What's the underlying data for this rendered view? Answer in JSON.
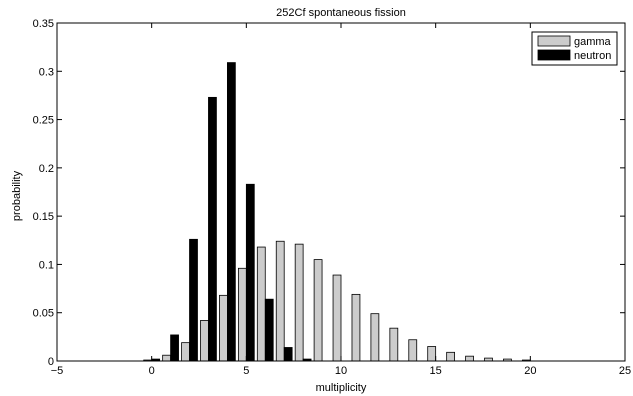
{
  "chart_data": {
    "type": "bar",
    "title": "252Cf spontaneous fission",
    "xlabel": "multiplicity",
    "ylabel": "probability",
    "xlim": [
      -5,
      25
    ],
    "ylim": [
      0,
      0.35
    ],
    "xticks": [
      "−5",
      "0",
      "5",
      "10",
      "15",
      "20",
      "25"
    ],
    "yticks": [
      "0",
      "0.05",
      "0.1",
      "0.15",
      "0.2",
      "0.25",
      "0.3",
      "0.35"
    ],
    "grid": false,
    "legend_position": "top-right",
    "series": [
      {
        "name": "gamma",
        "color": "#cccccc",
        "x": [
          0,
          1,
          2,
          3,
          4,
          5,
          6,
          7,
          8,
          9,
          10,
          11,
          12,
          13,
          14,
          15,
          16,
          17,
          18,
          19,
          20
        ],
        "values": [
          0.001,
          0.006,
          0.019,
          0.042,
          0.068,
          0.096,
          0.118,
          0.124,
          0.121,
          0.105,
          0.089,
          0.069,
          0.049,
          0.034,
          0.022,
          0.015,
          0.009,
          0.005,
          0.003,
          0.002,
          0.001
        ]
      },
      {
        "name": "neutron",
        "color": "#000000",
        "x": [
          0,
          1,
          2,
          3,
          4,
          5,
          6,
          7,
          8
        ],
        "values": [
          0.002,
          0.027,
          0.126,
          0.273,
          0.309,
          0.183,
          0.064,
          0.014,
          0.002
        ]
      }
    ]
  }
}
